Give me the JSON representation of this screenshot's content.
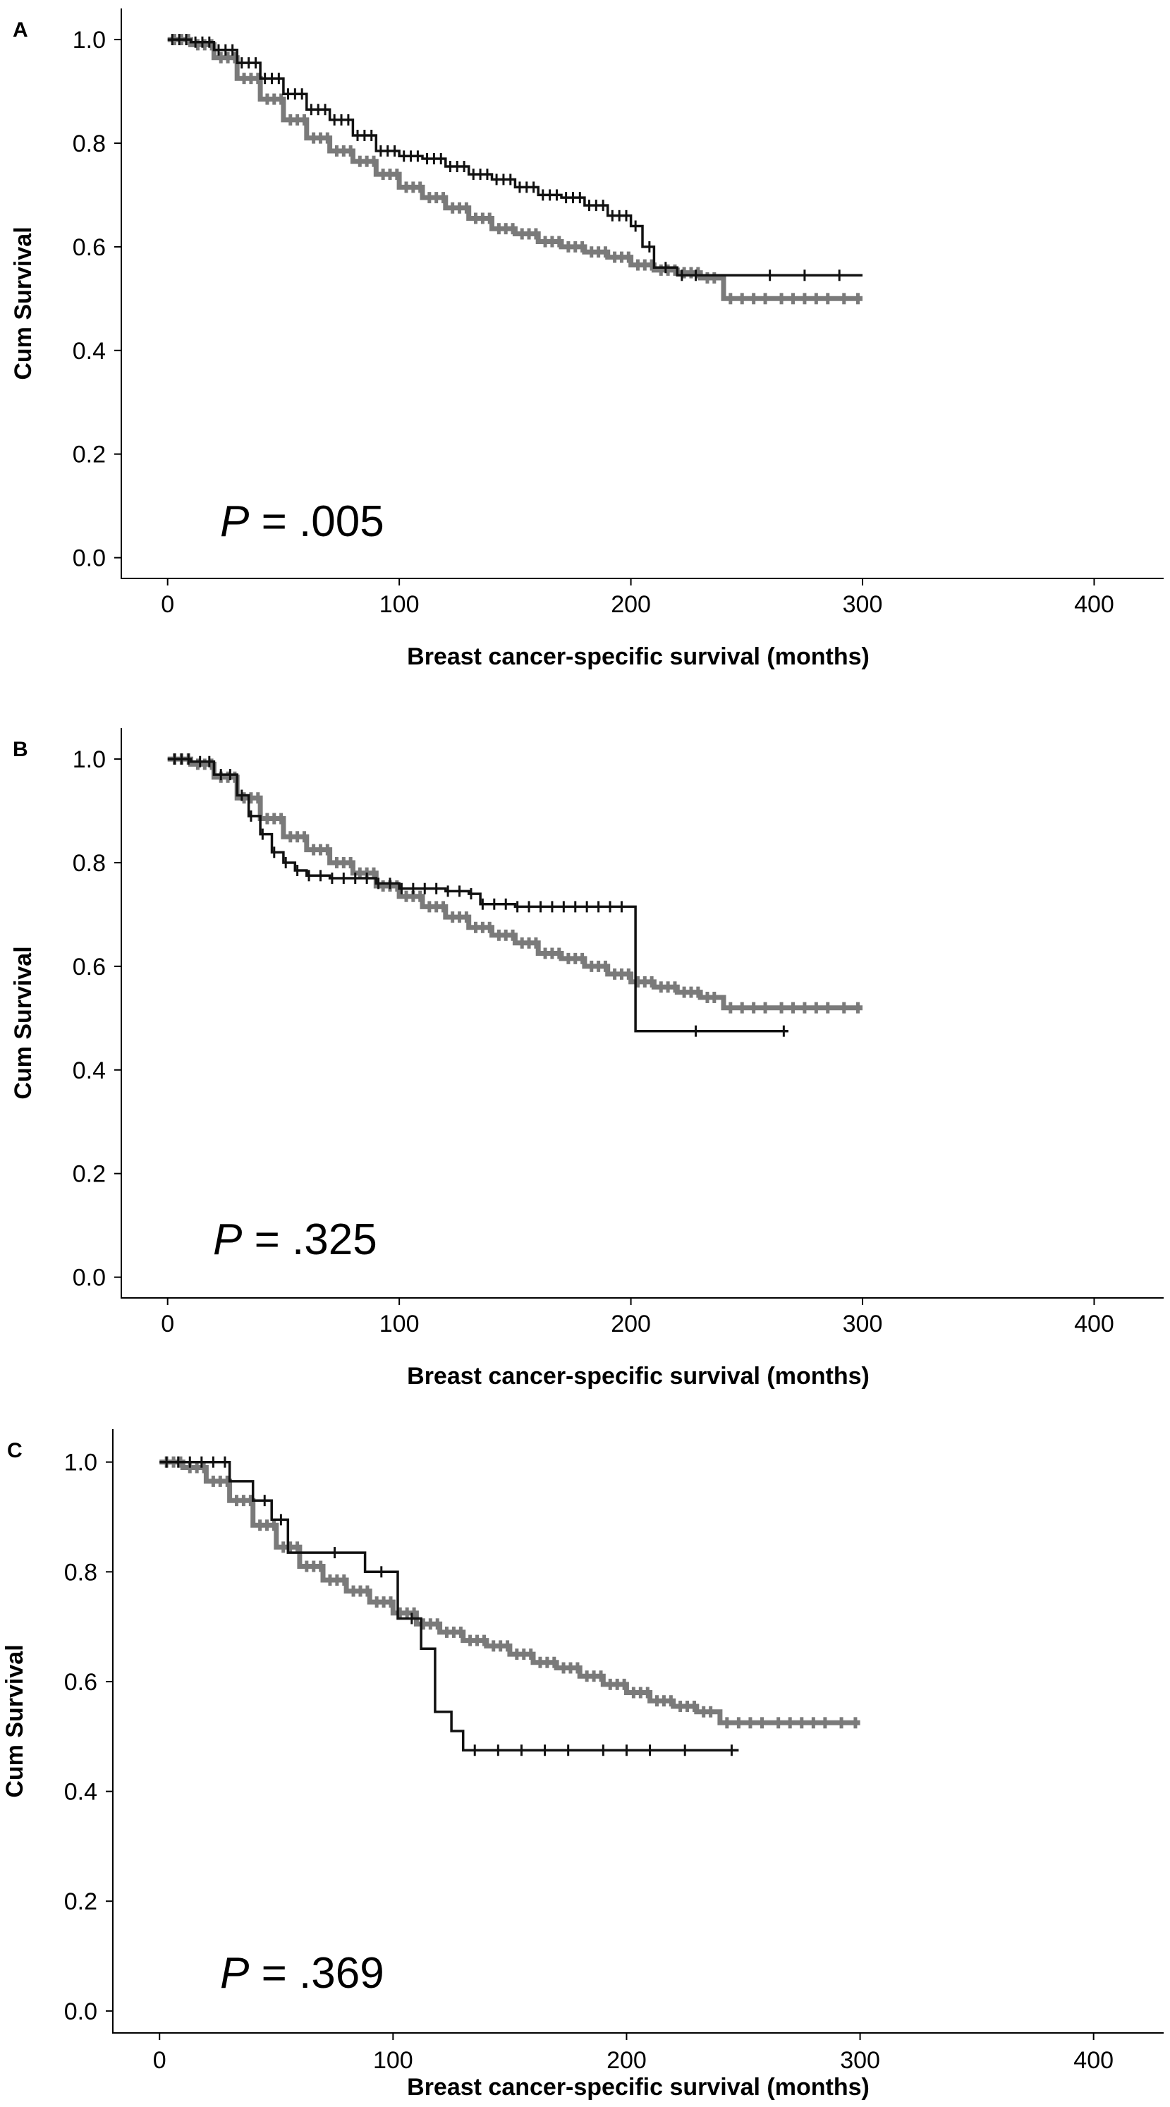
{
  "colors": {
    "group_dark": "#111111",
    "group_gray": "#7a7a7a"
  },
  "chart_data": [
    {
      "type": "line",
      "panel": "A",
      "annotation": {
        "prefix": "P",
        "text": " = .005"
      },
      "xlabel": "Breast cancer-specific survival (months)",
      "ylabel": "Cum Survival",
      "xlim": [
        -20,
        430
      ],
      "ylim": [
        -0.04,
        1.06
      ],
      "xticks": [
        0,
        100,
        200,
        300,
        400
      ],
      "yticks": [
        0.0,
        0.2,
        0.4,
        0.6,
        0.8,
        1.0
      ],
      "xtick_labels": [
        "0",
        "100",
        "200",
        "300",
        "400"
      ],
      "ytick_labels": [
        "0.0",
        "0.2",
        "0.4",
        "0.6",
        "0.8",
        "1.0"
      ],
      "series": [
        {
          "color": "#111111",
          "points": [
            [
              0,
              1.0
            ],
            [
              10,
              0.995
            ],
            [
              20,
              0.98
            ],
            [
              30,
              0.955
            ],
            [
              40,
              0.925
            ],
            [
              50,
              0.895
            ],
            [
              60,
              0.865
            ],
            [
              70,
              0.845
            ],
            [
              80,
              0.815
            ],
            [
              90,
              0.785
            ],
            [
              100,
              0.775
            ],
            [
              110,
              0.77
            ],
            [
              120,
              0.755
            ],
            [
              130,
              0.74
            ],
            [
              140,
              0.73
            ],
            [
              150,
              0.715
            ],
            [
              160,
              0.7
            ],
            [
              170,
              0.695
            ],
            [
              180,
              0.68
            ],
            [
              190,
              0.66
            ],
            [
              200,
              0.64
            ],
            [
              205,
              0.6
            ],
            [
              210,
              0.56
            ],
            [
              220,
              0.545
            ],
            [
              300,
              0.545
            ]
          ],
          "censor_x": [
            2,
            5,
            8,
            12,
            15,
            18,
            22,
            25,
            28,
            32,
            35,
            38,
            42,
            45,
            48,
            52,
            55,
            58,
            62,
            65,
            68,
            72,
            75,
            78,
            82,
            85,
            88,
            92,
            95,
            98,
            102,
            105,
            108,
            112,
            115,
            118,
            122,
            125,
            128,
            132,
            135,
            138,
            142,
            145,
            148,
            152,
            155,
            158,
            162,
            165,
            168,
            172,
            175,
            178,
            182,
            185,
            188,
            192,
            195,
            198,
            202,
            208,
            215,
            222,
            228,
            260,
            275,
            290
          ]
        },
        {
          "color": "#7a7a7a",
          "points": [
            [
              0,
              1.0
            ],
            [
              10,
              0.99
            ],
            [
              20,
              0.965
            ],
            [
              30,
              0.925
            ],
            [
              40,
              0.885
            ],
            [
              50,
              0.845
            ],
            [
              60,
              0.81
            ],
            [
              70,
              0.785
            ],
            [
              80,
              0.765
            ],
            [
              90,
              0.74
            ],
            [
              100,
              0.715
            ],
            [
              110,
              0.695
            ],
            [
              120,
              0.675
            ],
            [
              130,
              0.655
            ],
            [
              140,
              0.635
            ],
            [
              150,
              0.625
            ],
            [
              160,
              0.61
            ],
            [
              170,
              0.6
            ],
            [
              180,
              0.59
            ],
            [
              190,
              0.58
            ],
            [
              200,
              0.565
            ],
            [
              210,
              0.555
            ],
            [
              220,
              0.55
            ],
            [
              230,
              0.54
            ],
            [
              240,
              0.5
            ],
            [
              300,
              0.5
            ]
          ],
          "censor_x": [
            3,
            6,
            9,
            13,
            16,
            19,
            23,
            26,
            29,
            33,
            36,
            39,
            43,
            46,
            49,
            53,
            56,
            59,
            63,
            66,
            69,
            73,
            76,
            79,
            83,
            86,
            89,
            93,
            96,
            99,
            103,
            106,
            109,
            113,
            116,
            119,
            123,
            126,
            129,
            133,
            136,
            139,
            143,
            146,
            149,
            153,
            156,
            159,
            163,
            166,
            169,
            173,
            176,
            179,
            183,
            186,
            189,
            193,
            196,
            199,
            203,
            206,
            209,
            213,
            216,
            219,
            223,
            226,
            229,
            233,
            236,
            243,
            248,
            253,
            258,
            265,
            270,
            275,
            280,
            285,
            292,
            298
          ]
        }
      ]
    },
    {
      "type": "line",
      "panel": "B",
      "annotation": {
        "prefix": "P",
        "text": " = .325"
      },
      "xlabel": "Breast cancer-specific survival (months)",
      "ylabel": "Cum Survival",
      "xlim": [
        -20,
        430
      ],
      "ylim": [
        -0.04,
        1.06
      ],
      "xticks": [
        0,
        100,
        200,
        300,
        400
      ],
      "yticks": [
        0.0,
        0.2,
        0.4,
        0.6,
        0.8,
        1.0
      ],
      "xtick_labels": [
        "0",
        "100",
        "200",
        "300",
        "400"
      ],
      "ytick_labels": [
        "0.0",
        "0.2",
        "0.4",
        "0.6",
        "0.8",
        "1.0"
      ],
      "series": [
        {
          "color": "#111111",
          "points": [
            [
              0,
              1.0
            ],
            [
              10,
              0.995
            ],
            [
              20,
              0.97
            ],
            [
              30,
              0.93
            ],
            [
              35,
              0.89
            ],
            [
              40,
              0.855
            ],
            [
              45,
              0.82
            ],
            [
              50,
              0.8
            ],
            [
              55,
              0.785
            ],
            [
              60,
              0.775
            ],
            [
              70,
              0.77
            ],
            [
              80,
              0.77
            ],
            [
              90,
              0.76
            ],
            [
              100,
              0.75
            ],
            [
              120,
              0.745
            ],
            [
              130,
              0.74
            ],
            [
              135,
              0.72
            ],
            [
              150,
              0.715
            ],
            [
              202,
              0.715
            ],
            [
              202,
              0.475
            ],
            [
              268,
              0.475
            ]
          ],
          "censor_x": [
            3,
            6,
            9,
            14,
            18,
            23,
            27,
            32,
            36,
            41,
            46,
            51,
            56,
            61,
            66,
            71,
            76,
            81,
            86,
            91,
            96,
            101,
            106,
            111,
            116,
            121,
            126,
            131,
            136,
            141,
            146,
            151,
            156,
            161,
            166,
            171,
            176,
            181,
            186,
            191,
            196,
            228,
            266
          ]
        },
        {
          "color": "#7a7a7a",
          "points": [
            [
              0,
              1.0
            ],
            [
              10,
              0.99
            ],
            [
              20,
              0.965
            ],
            [
              30,
              0.925
            ],
            [
              40,
              0.885
            ],
            [
              50,
              0.85
            ],
            [
              60,
              0.825
            ],
            [
              70,
              0.8
            ],
            [
              80,
              0.78
            ],
            [
              90,
              0.755
            ],
            [
              100,
              0.735
            ],
            [
              110,
              0.715
            ],
            [
              120,
              0.695
            ],
            [
              130,
              0.675
            ],
            [
              140,
              0.66
            ],
            [
              150,
              0.645
            ],
            [
              160,
              0.625
            ],
            [
              170,
              0.615
            ],
            [
              180,
              0.6
            ],
            [
              190,
              0.585
            ],
            [
              200,
              0.57
            ],
            [
              210,
              0.56
            ],
            [
              220,
              0.55
            ],
            [
              230,
              0.54
            ],
            [
              240,
              0.52
            ],
            [
              300,
              0.52
            ]
          ],
          "censor_x": [
            3,
            6,
            9,
            13,
            16,
            19,
            23,
            26,
            29,
            33,
            36,
            39,
            43,
            46,
            49,
            53,
            56,
            59,
            63,
            66,
            69,
            73,
            76,
            79,
            83,
            86,
            89,
            93,
            96,
            99,
            103,
            106,
            109,
            113,
            116,
            119,
            123,
            126,
            129,
            133,
            136,
            139,
            143,
            146,
            149,
            153,
            156,
            159,
            163,
            166,
            169,
            173,
            176,
            179,
            183,
            186,
            189,
            193,
            196,
            199,
            203,
            206,
            209,
            213,
            216,
            219,
            223,
            226,
            229,
            233,
            236,
            243,
            248,
            253,
            258,
            265,
            270,
            275,
            280,
            285,
            292,
            298
          ]
        }
      ]
    },
    {
      "type": "line",
      "panel": "C",
      "annotation": {
        "prefix": "P",
        "text": " = .369"
      },
      "xlabel": "Breast cancer-specific survival (months)",
      "ylabel": "Cum Survival",
      "xlim": [
        -20,
        430
      ],
      "ylim": [
        -0.04,
        1.06
      ],
      "xticks": [
        0,
        100,
        200,
        300,
        400
      ],
      "yticks": [
        0.0,
        0.2,
        0.4,
        0.6,
        0.8,
        1.0
      ],
      "xtick_labels": [
        "0",
        "100",
        "200",
        "300",
        "400"
      ],
      "ytick_labels": [
        "0.0",
        "0.2",
        "0.4",
        "0.6",
        "0.8",
        "1.0"
      ],
      "series": [
        {
          "color": "#111111",
          "points": [
            [
              0,
              1.0
            ],
            [
              30,
              1.0
            ],
            [
              30,
              0.965
            ],
            [
              40,
              0.965
            ],
            [
              40,
              0.93
            ],
            [
              48,
              0.93
            ],
            [
              48,
              0.895
            ],
            [
              55,
              0.895
            ],
            [
              55,
              0.835
            ],
            [
              88,
              0.835
            ],
            [
              88,
              0.8
            ],
            [
              102,
              0.8
            ],
            [
              102,
              0.715
            ],
            [
              112,
              0.715
            ],
            [
              112,
              0.66
            ],
            [
              118,
              0.66
            ],
            [
              118,
              0.545
            ],
            [
              125,
              0.545
            ],
            [
              125,
              0.51
            ],
            [
              130,
              0.51
            ],
            [
              130,
              0.475
            ],
            [
              248,
              0.475
            ]
          ],
          "censor_x": [
            3,
            8,
            13,
            18,
            23,
            28,
            45,
            52,
            75,
            95,
            108,
            135,
            145,
            155,
            165,
            175,
            190,
            200,
            210,
            225,
            245
          ]
        },
        {
          "color": "#7a7a7a",
          "points": [
            [
              0,
              1.0
            ],
            [
              10,
              0.99
            ],
            [
              20,
              0.965
            ],
            [
              30,
              0.93
            ],
            [
              40,
              0.885
            ],
            [
              50,
              0.845
            ],
            [
              60,
              0.81
            ],
            [
              70,
              0.785
            ],
            [
              80,
              0.765
            ],
            [
              90,
              0.745
            ],
            [
              100,
              0.725
            ],
            [
              110,
              0.705
            ],
            [
              120,
              0.69
            ],
            [
              130,
              0.675
            ],
            [
              140,
              0.665
            ],
            [
              150,
              0.65
            ],
            [
              160,
              0.635
            ],
            [
              170,
              0.625
            ],
            [
              180,
              0.61
            ],
            [
              190,
              0.595
            ],
            [
              200,
              0.58
            ],
            [
              210,
              0.565
            ],
            [
              220,
              0.555
            ],
            [
              230,
              0.545
            ],
            [
              240,
              0.525
            ],
            [
              300,
              0.525
            ]
          ],
          "censor_x": [
            3,
            6,
            9,
            13,
            16,
            19,
            23,
            26,
            29,
            33,
            36,
            39,
            43,
            46,
            49,
            53,
            56,
            59,
            63,
            66,
            69,
            73,
            76,
            79,
            83,
            86,
            89,
            93,
            96,
            99,
            103,
            106,
            109,
            113,
            116,
            119,
            123,
            126,
            129,
            133,
            136,
            139,
            143,
            146,
            149,
            153,
            156,
            159,
            163,
            166,
            169,
            173,
            176,
            179,
            183,
            186,
            189,
            193,
            196,
            199,
            203,
            206,
            209,
            213,
            216,
            219,
            223,
            226,
            229,
            233,
            236,
            243,
            248,
            253,
            258,
            265,
            270,
            275,
            280,
            285,
            292,
            298
          ]
        }
      ]
    }
  ]
}
